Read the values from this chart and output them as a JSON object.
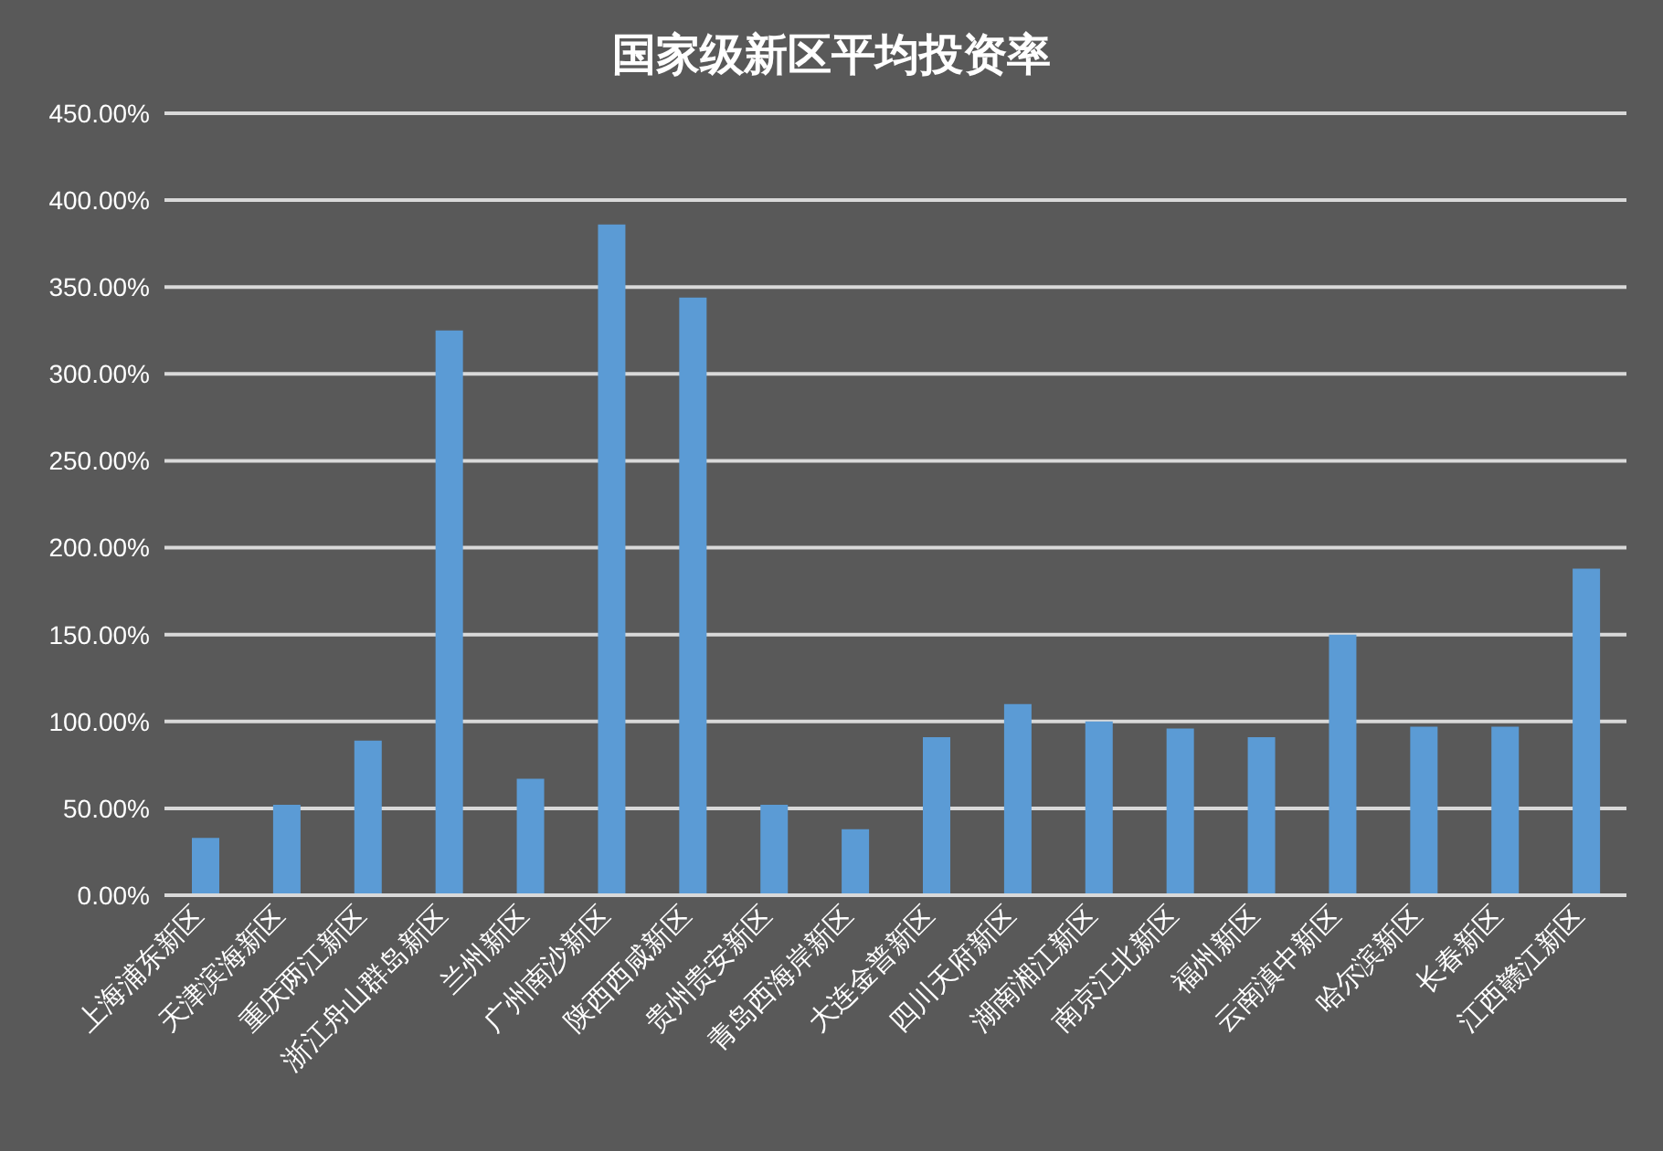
{
  "chart_data": {
    "type": "bar",
    "title": "国家级新区平均投资率",
    "categories": [
      "上海浦东新区",
      "天津滨海新区",
      "重庆两江新区",
      "浙江舟山群岛新区",
      "兰州新区",
      "广州南沙新区",
      "陕西西咸新区",
      "贵州贵安新区",
      "青岛西海岸新区",
      "大连金普新区",
      "四川天府新区",
      "湖南湘江新区",
      "南京江北新区",
      "福州新区",
      "云南滇中新区",
      "哈尔滨新区",
      "长春新区",
      "江西赣江新区"
    ],
    "values": [
      33,
      52,
      89,
      325,
      67,
      386,
      344,
      52,
      38,
      91,
      110,
      100,
      96,
      91,
      150,
      97,
      97,
      188
    ],
    "color": "#5b9bd5",
    "ylim": [
      0,
      450
    ],
    "yticks": [
      {
        "value": 0,
        "label": "0.00%"
      },
      {
        "value": 50,
        "label": "50.00%"
      },
      {
        "value": 100,
        "label": "100.00%"
      },
      {
        "value": 150,
        "label": "150.00%"
      },
      {
        "value": 200,
        "label": "200.00%"
      },
      {
        "value": 250,
        "label": "250.00%"
      },
      {
        "value": 300,
        "label": "300.00%"
      },
      {
        "value": 350,
        "label": "350.00%"
      },
      {
        "value": 400,
        "label": "400.00%"
      },
      {
        "value": 450,
        "label": "450.00%"
      }
    ],
    "grid": "y"
  }
}
